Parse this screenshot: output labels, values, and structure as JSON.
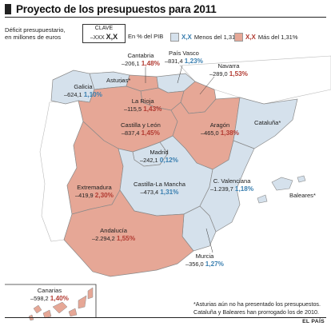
{
  "title": "Proyecto de los presupuestos para 2011",
  "legend": {
    "deficit_label_1": "Déficit presupuestario,",
    "deficit_label_2": "en millones de euros",
    "clave_title": "CLAVE",
    "clave_example_value": "–XXX",
    "clave_example_pct": "X,X",
    "pct_label": "En % del PIB",
    "below_label": "Menos del 1,31%",
    "above_label": "Más del 1,31%",
    "below_code": "X,X",
    "above_code": "X,X",
    "below_color": "#d5e1ec",
    "above_color": "#e6a796"
  },
  "regions": [
    {
      "name": "Galicia",
      "value": "–624,1",
      "pct": "1,10%",
      "group": "below"
    },
    {
      "name": "Asturias*",
      "value": "",
      "pct": "",
      "group": "none"
    },
    {
      "name": "Cantabria",
      "value": "–206,1",
      "pct": "1,48%",
      "group": "above"
    },
    {
      "name": "País Vasco",
      "value": "–831,4",
      "pct": "1,23%",
      "group": "below"
    },
    {
      "name": "Navarra",
      "value": "–289,0",
      "pct": "1,53%",
      "group": "above"
    },
    {
      "name": "La Rioja",
      "value": "–115,5",
      "pct": "1,43%",
      "group": "above"
    },
    {
      "name": "Castilla y León",
      "value": "–837,4",
      "pct": "1,45%",
      "group": "above"
    },
    {
      "name": "Aragón",
      "value": "–465,0",
      "pct": "1,38%",
      "group": "above"
    },
    {
      "name": "Cataluña*",
      "value": "",
      "pct": "",
      "group": "none"
    },
    {
      "name": "Madrid",
      "value": "–242,1",
      "pct": "0,12%",
      "group": "below"
    },
    {
      "name": "Extremadura",
      "value": "–419,9",
      "pct": "2,30%",
      "group": "above"
    },
    {
      "name": "Castilla-La Mancha",
      "value": "–473,4",
      "pct": "1,31%",
      "group": "below"
    },
    {
      "name": "C. Valenciana",
      "value": "–1.239,7",
      "pct": "1,18%",
      "group": "below"
    },
    {
      "name": "Baleares*",
      "value": "",
      "pct": "",
      "group": "none"
    },
    {
      "name": "Andalucía",
      "value": "–2.294,2",
      "pct": "1,55%",
      "group": "above"
    },
    {
      "name": "Murcia",
      "value": "–356,0",
      "pct": "1,27%",
      "group": "below"
    },
    {
      "name": "Canarias",
      "value": "–598,2",
      "pct": "1,40%",
      "group": "above"
    }
  ],
  "footnote_1": "*Asturias aún no ha presentado los presupuestos.",
  "footnote_2": "Cataluña y Baleares han prorrogado los de 2010.",
  "source": "EL PAÍS"
}
